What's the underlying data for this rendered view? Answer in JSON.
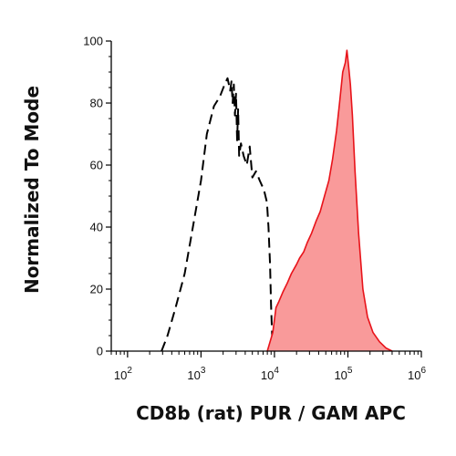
{
  "chart_data": {
    "type": "area",
    "xlabel": "CD8b (rat) PUR / GAM APC",
    "ylabel": "Normalized To Mode",
    "x_scale": "log",
    "xlim": [
      60,
      1000000
    ],
    "ylim": [
      0,
      100
    ],
    "x_ticks": [
      {
        "value": 100,
        "base": "10",
        "exp": "2"
      },
      {
        "value": 1000,
        "base": "10",
        "exp": "3"
      },
      {
        "value": 10000,
        "base": "10",
        "exp": "4"
      },
      {
        "value": 100000,
        "base": "10",
        "exp": "5"
      },
      {
        "value": 1000000,
        "base": "10",
        "exp": "6"
      }
    ],
    "y_ticks": [
      {
        "value": 0,
        "label": "0"
      },
      {
        "value": 20,
        "label": "20"
      },
      {
        "value": 40,
        "label": "40"
      },
      {
        "value": 60,
        "label": "60"
      },
      {
        "value": 80,
        "label": "80"
      },
      {
        "value": 100,
        "label": "100"
      }
    ],
    "grid": false,
    "colors": {
      "stained_fill": "#f99a9a",
      "stained_line": "#e8131a",
      "control_line": "#000000"
    },
    "series": [
      {
        "style": "dashed-outline",
        "x": [
          290,
          350,
          450,
          600,
          750,
          1000,
          1200,
          1500,
          1800,
          2100,
          2300,
          2500,
          2600,
          2700,
          2800,
          2900,
          3000,
          3100,
          3200,
          3300,
          3500,
          3800,
          4200,
          4600,
          5000,
          5600,
          6300,
          7200,
          7900,
          8300,
          8700,
          9000,
          9300,
          9800
        ],
        "y": [
          0,
          5,
          14,
          25,
          38,
          55,
          70,
          79,
          82,
          86,
          88,
          84,
          87,
          80,
          86,
          76,
          83,
          68,
          78,
          63,
          67,
          63,
          60,
          66,
          56,
          58,
          55,
          52,
          48,
          40,
          28,
          15,
          5,
          0
        ]
      },
      {
        "style": "filled",
        "x": [
          8000,
          9500,
          10500,
          11500,
          13000,
          15000,
          17000,
          20000,
          22000,
          25000,
          28000,
          32000,
          37000,
          42000,
          48000,
          55000,
          62000,
          70000,
          77000,
          85000,
          92000,
          97000,
          102000,
          108000,
          115000,
          125000,
          140000,
          160000,
          185000,
          220000,
          270000,
          330000,
          400000
        ],
        "y": [
          0,
          6,
          14,
          16,
          19,
          22,
          25,
          28,
          30,
          32,
          35,
          38,
          42,
          45,
          50,
          55,
          62,
          71,
          80,
          90,
          93,
          97,
          92,
          86,
          76,
          58,
          38,
          20,
          11,
          6,
          3,
          1,
          0
        ]
      }
    ]
  }
}
